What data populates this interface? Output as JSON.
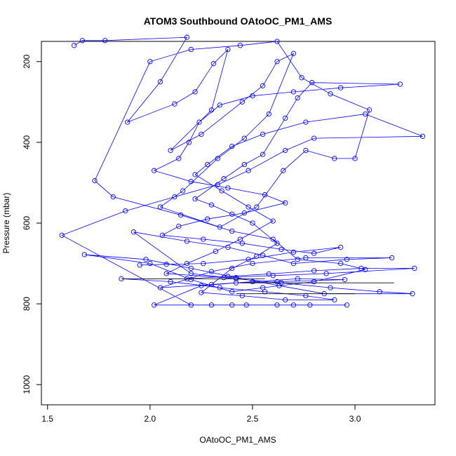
{
  "chart_data": {
    "type": "line",
    "title": "ATOM3 Southbound OAtoOC_PM1_AMS",
    "xlabel": "OAtoOC_PM1_AMS",
    "ylabel": "Pressure (mbar)",
    "xlim": [
      1.47,
      3.39
    ],
    "ylim": [
      1050,
      150
    ],
    "y_reversed": true,
    "x_ticks": [
      "1.5",
      "2.0",
      "2.5",
      "3.0"
    ],
    "x_tick_values": [
      1.5,
      2.0,
      2.5,
      3.0
    ],
    "y_ticks": [
      "200",
      "400",
      "600",
      "800",
      "1000"
    ],
    "y_tick_values": [
      200,
      400,
      600,
      800,
      1000
    ],
    "marker": "open-circle",
    "series": [
      {
        "color": "#0000ff",
        "points": [
          [
            1.63,
            160
          ],
          [
            1.67,
            148
          ],
          [
            1.78,
            148
          ],
          [
            2.18,
            140
          ],
          [
            2.05,
            250
          ],
          [
            1.89,
            350
          ],
          [
            2.12,
            305
          ],
          [
            2.22,
            275
          ],
          [
            2.31,
            205
          ],
          [
            2.38,
            170
          ],
          [
            2.3,
            320
          ],
          [
            2.1,
            420
          ],
          [
            2.25,
            380
          ],
          [
            2.45,
            300
          ],
          [
            2.55,
            260
          ],
          [
            2.62,
            200
          ],
          [
            2.7,
            180
          ],
          [
            2.58,
            330
          ],
          [
            2.46,
            390
          ],
          [
            2.33,
            440
          ],
          [
            2.16,
            520
          ],
          [
            2.05,
            560
          ],
          [
            2.34,
            610
          ],
          [
            2.52,
            560
          ],
          [
            2.65,
            470
          ],
          [
            2.76,
            420
          ],
          [
            2.9,
            440
          ],
          [
            3.0,
            440
          ],
          [
            3.07,
            320
          ],
          [
            2.88,
            280
          ],
          [
            2.74,
            240
          ],
          [
            2.62,
            150
          ],
          [
            2.44,
            160
          ],
          [
            2.2,
            170
          ],
          [
            2.0,
            200
          ],
          [
            1.73,
            495
          ],
          [
            1.82,
            535
          ],
          [
            2.15,
            580
          ],
          [
            2.4,
            620
          ],
          [
            2.6,
            640
          ],
          [
            2.72,
            690
          ],
          [
            2.93,
            700
          ],
          [
            3.05,
            715
          ],
          [
            2.8,
            745
          ],
          [
            2.55,
            760
          ],
          [
            2.4,
            770
          ],
          [
            2.2,
            740
          ],
          [
            2.0,
            700
          ],
          [
            1.68,
            678
          ],
          [
            1.98,
            690
          ],
          [
            2.2,
            712
          ],
          [
            2.42,
            735
          ],
          [
            2.63,
            755
          ],
          [
            2.85,
            775
          ],
          [
            3.28,
            775
          ],
          [
            3.12,
            770
          ],
          [
            2.88,
            760
          ],
          [
            2.64,
            748
          ],
          [
            2.42,
            738
          ],
          [
            2.2,
            725
          ],
          [
            1.92,
            622
          ],
          [
            2.18,
            645
          ],
          [
            2.38,
            660
          ],
          [
            2.55,
            680
          ],
          [
            2.7,
            700
          ],
          [
            2.96,
            690
          ],
          [
            3.18,
            686
          ],
          [
            2.76,
            686
          ],
          [
            2.5,
            700
          ],
          [
            2.3,
            720
          ],
          [
            2.05,
            760
          ],
          [
            2.3,
            752
          ],
          [
            2.5,
            745
          ],
          [
            2.72,
            738
          ],
          [
            2.95,
            740
          ],
          [
            2.62,
            745
          ],
          [
            2.42,
            748
          ],
          [
            2.25,
            755
          ],
          [
            2.02,
            803
          ],
          [
            2.3,
            803
          ],
          [
            2.47,
            803
          ],
          [
            2.62,
            803
          ],
          [
            2.78,
            803
          ],
          [
            2.96,
            803
          ],
          [
            2.7,
            803
          ],
          [
            2.4,
            803
          ],
          [
            2.2,
            803
          ],
          [
            1.57,
            630
          ],
          [
            1.88,
            570
          ],
          [
            2.12,
            535
          ],
          [
            2.33,
            505
          ],
          [
            2.48,
            470
          ],
          [
            2.66,
            420
          ],
          [
            2.8,
            390
          ],
          [
            3.33,
            385
          ],
          [
            3.05,
            330
          ],
          [
            2.76,
            350
          ],
          [
            2.55,
            380
          ],
          [
            2.4,
            410
          ],
          [
            2.28,
            455
          ],
          [
            2.22,
            480
          ],
          [
            2.35,
            520
          ],
          [
            2.48,
            560
          ],
          [
            2.6,
            595
          ],
          [
            2.44,
            640
          ],
          [
            2.32,
            670
          ],
          [
            2.18,
            700
          ],
          [
            2.08,
            725
          ],
          [
            2.36,
            735
          ],
          [
            2.6,
            730
          ],
          [
            2.86,
            725
          ],
          [
            3.29,
            712
          ],
          [
            3.03,
            712
          ],
          [
            2.8,
            718
          ],
          [
            2.58,
            726
          ],
          [
            2.38,
            732
          ],
          [
            2.18,
            738
          ],
          [
            1.86,
            738
          ],
          [
            2.1,
            745
          ],
          [
            2.34,
            760
          ],
          [
            2.56,
            770
          ],
          [
            2.76,
            780
          ],
          [
            2.9,
            790
          ],
          [
            2.66,
            790
          ],
          [
            2.45,
            780
          ],
          [
            2.25,
            772
          ],
          [
            2.4,
            712
          ],
          [
            2.52,
            682
          ],
          [
            2.62,
            650
          ],
          [
            2.5,
            600
          ],
          [
            2.4,
            578
          ],
          [
            2.3,
            555
          ],
          [
            2.22,
            540
          ],
          [
            2.36,
            490
          ],
          [
            2.46,
            455
          ],
          [
            2.55,
            430
          ],
          [
            2.66,
            340
          ],
          [
            2.72,
            290
          ],
          [
            2.79,
            252
          ],
          [
            3.22,
            256
          ],
          [
            2.93,
            265
          ],
          [
            2.7,
            275
          ],
          [
            2.5,
            285
          ],
          [
            2.34,
            308
          ],
          [
            2.24,
            350
          ],
          [
            2.19,
            400
          ],
          [
            2.14,
            440
          ],
          [
            2.02,
            470
          ],
          [
            2.2,
            497
          ],
          [
            2.38,
            513
          ],
          [
            2.56,
            530
          ],
          [
            2.66,
            550
          ],
          [
            2.46,
            575
          ],
          [
            2.28,
            590
          ],
          [
            2.14,
            608
          ],
          [
            2.06,
            630
          ],
          [
            2.26,
            640
          ],
          [
            2.45,
            650
          ],
          [
            2.64,
            665
          ],
          [
            2.8,
            675
          ],
          [
            2.93,
            660
          ],
          [
            2.7,
            672
          ],
          [
            2.48,
            690
          ],
          [
            2.26,
            700
          ],
          [
            2.08,
            702
          ],
          [
            1.95,
            704
          ]
        ]
      },
      {
        "color": "#000000",
        "points": [
          [
            1.86,
            738
          ],
          [
            2.56,
            738
          ]
        ]
      },
      {
        "color": "#000000",
        "points": [
          [
            2.44,
            748
          ],
          [
            3.19,
            748
          ]
        ]
      },
      {
        "color": "#000000",
        "points": [
          [
            2.42,
            775
          ],
          [
            3.0,
            775
          ]
        ]
      }
    ]
  }
}
